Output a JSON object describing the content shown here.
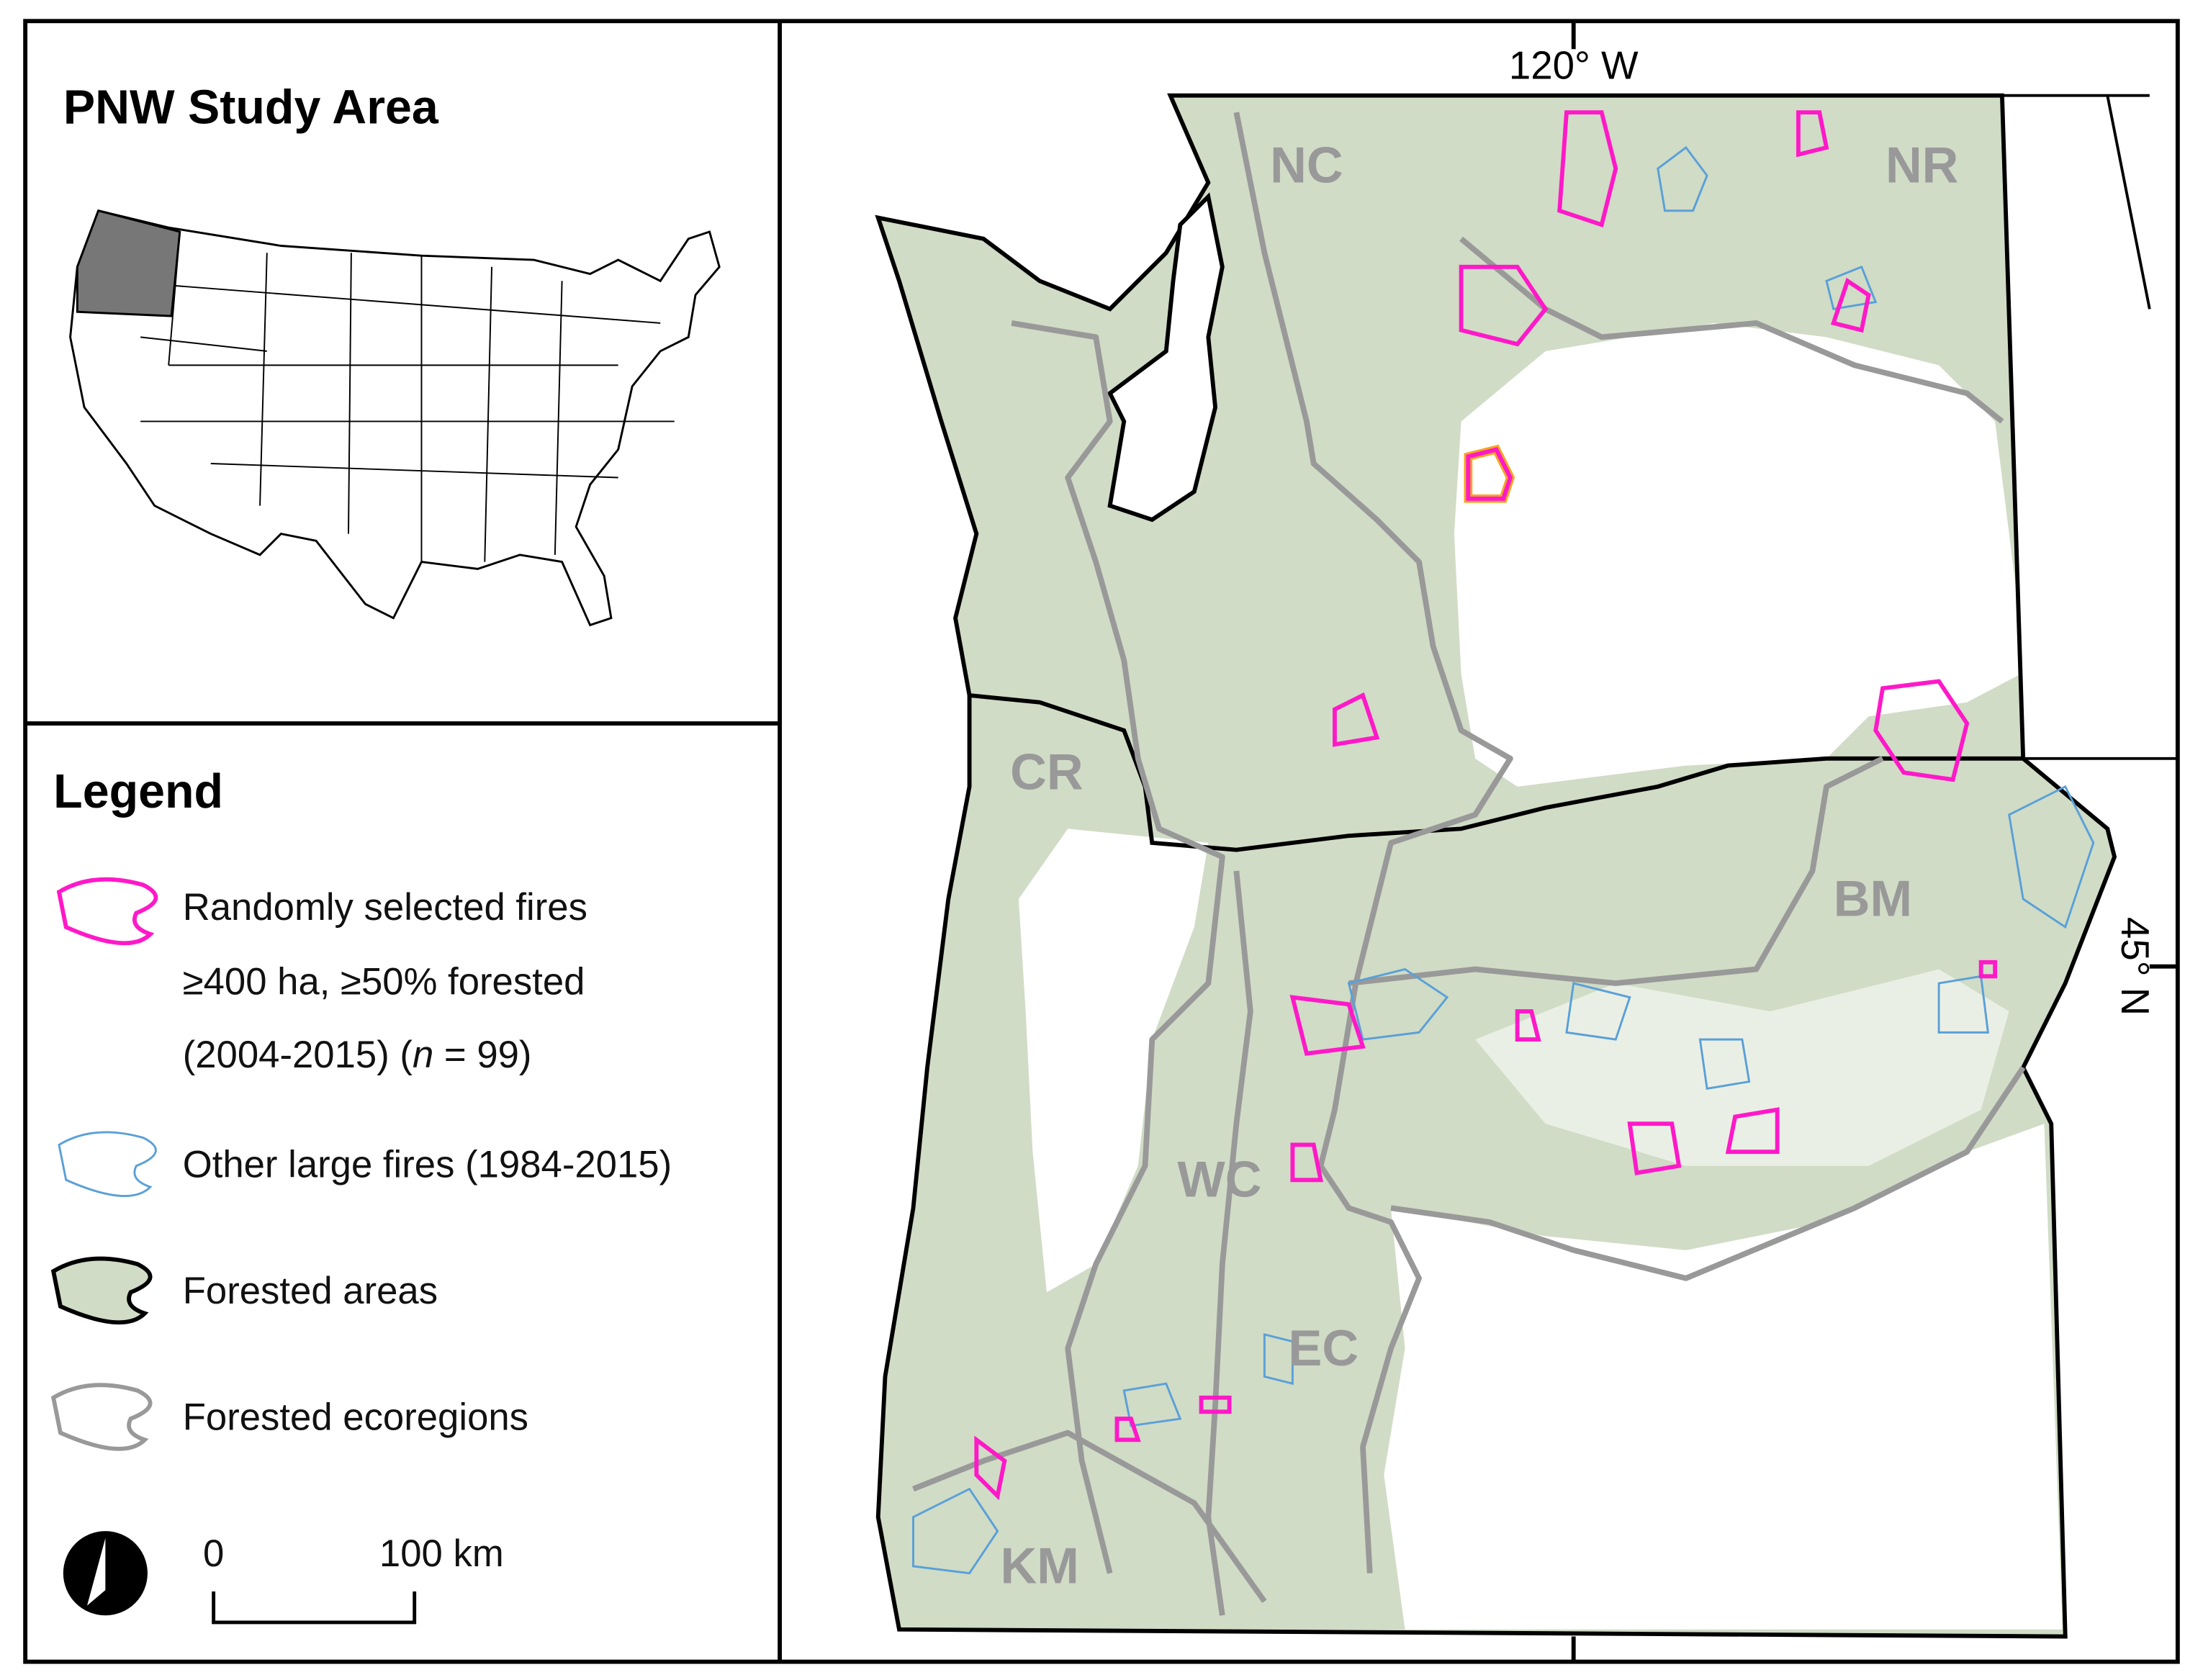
{
  "title": "PNW Study Area",
  "legend": {
    "title": "Legend",
    "items": [
      {
        "label": [
          "Randomly selected fires",
          "≥400 ha, ≥50% forested",
          "(2004-2015) (",
          "n",
          " = 99)"
        ]
      },
      {
        "label": "Other large fires (1984-2015)"
      },
      {
        "label": "Forested areas"
      },
      {
        "label": "Forested ecoregions"
      }
    ]
  },
  "scale_bar": {
    "start": "0",
    "end": "100 km"
  },
  "graticule": {
    "longitude": "120° W",
    "latitude": "45° N"
  },
  "ecoregions": [
    "NC",
    "NR",
    "CR",
    "BM",
    "WC",
    "EC",
    "KM"
  ]
}
